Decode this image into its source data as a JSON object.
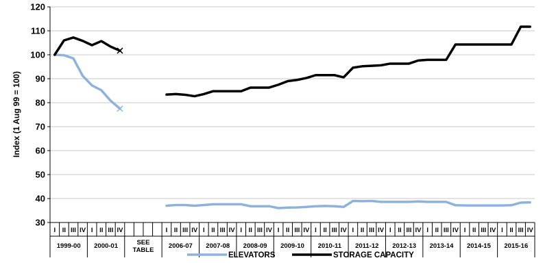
{
  "chart_data": {
    "type": "line",
    "ylabel": "Index (1 Aug 99 = 100)",
    "ylim": [
      30,
      120
    ],
    "yticks": [
      30,
      40,
      50,
      60,
      70,
      80,
      90,
      100,
      110,
      120
    ],
    "quarters": [
      "I",
      "II",
      "III",
      "IV"
    ],
    "year_groups": [
      {
        "label": "1999-00",
        "quarters": 4
      },
      {
        "label": "2000-01",
        "quarters": 4
      },
      {
        "label": "SEE\nTABLE",
        "quarters": 4
      },
      {
        "label": "2006-07",
        "quarters": 4
      },
      {
        "label": "2007-08",
        "quarters": 4
      },
      {
        "label": "2008-09",
        "quarters": 4
      },
      {
        "label": "2009-10",
        "quarters": 4
      },
      {
        "label": "2010-11",
        "quarters": 4
      },
      {
        "label": "2011-12",
        "quarters": 4
      },
      {
        "label": "2012-13",
        "quarters": 4
      },
      {
        "label": "2013-14",
        "quarters": 4
      },
      {
        "label": "2014-15",
        "quarters": 4
      },
      {
        "label": "2015-16",
        "quarters": 4
      }
    ],
    "series": [
      {
        "name": "ELEVATORS",
        "color": "#8fb2dc",
        "segments": [
          {
            "start": 0,
            "values": [
              100,
              99.8,
              98.5,
              91.2,
              87.2,
              85.2,
              80.8,
              77.5
            ],
            "end_marker": "x"
          },
          {
            "start": 12,
            "values": [
              37.0,
              37.3,
              37.3,
              37.0,
              37.3,
              37.6,
              37.6,
              37.6,
              37.6,
              36.8,
              36.8,
              36.8,
              36.0,
              36.2,
              36.3,
              36.5,
              36.8,
              36.9,
              36.8,
              36.5,
              39.0,
              38.9,
              39.0,
              38.6,
              38.6,
              38.6,
              38.6,
              38.8,
              38.6,
              38.6,
              38.6,
              37.2,
              37.1,
              37.1,
              37.1,
              37.1,
              37.1,
              37.2,
              38.3,
              38.4
            ]
          }
        ]
      },
      {
        "name": "STORAGE CAPACITY",
        "color": "#000000",
        "segments": [
          {
            "start": 0,
            "values": [
              100,
              106.0,
              107.2,
              105.8,
              104.0,
              105.7,
              103.4,
              101.7
            ],
            "end_marker": "x"
          },
          {
            "start": 12,
            "values": [
              83.4,
              83.6,
              83.3,
              82.7,
              83.6,
              84.8,
              84.8,
              84.8,
              84.8,
              86.3,
              86.3,
              86.3,
              87.5,
              89.0,
              89.5,
              90.3,
              91.5,
              91.5,
              91.5,
              90.6,
              94.6,
              95.2,
              95.4,
              95.6,
              96.3,
              96.3,
              96.3,
              97.6,
              97.9,
              97.9,
              97.9,
              104.3,
              104.3,
              104.3,
              104.3,
              104.3,
              104.3,
              104.3,
              111.7,
              111.7
            ]
          }
        ]
      }
    ],
    "legend_position": "bottom"
  }
}
